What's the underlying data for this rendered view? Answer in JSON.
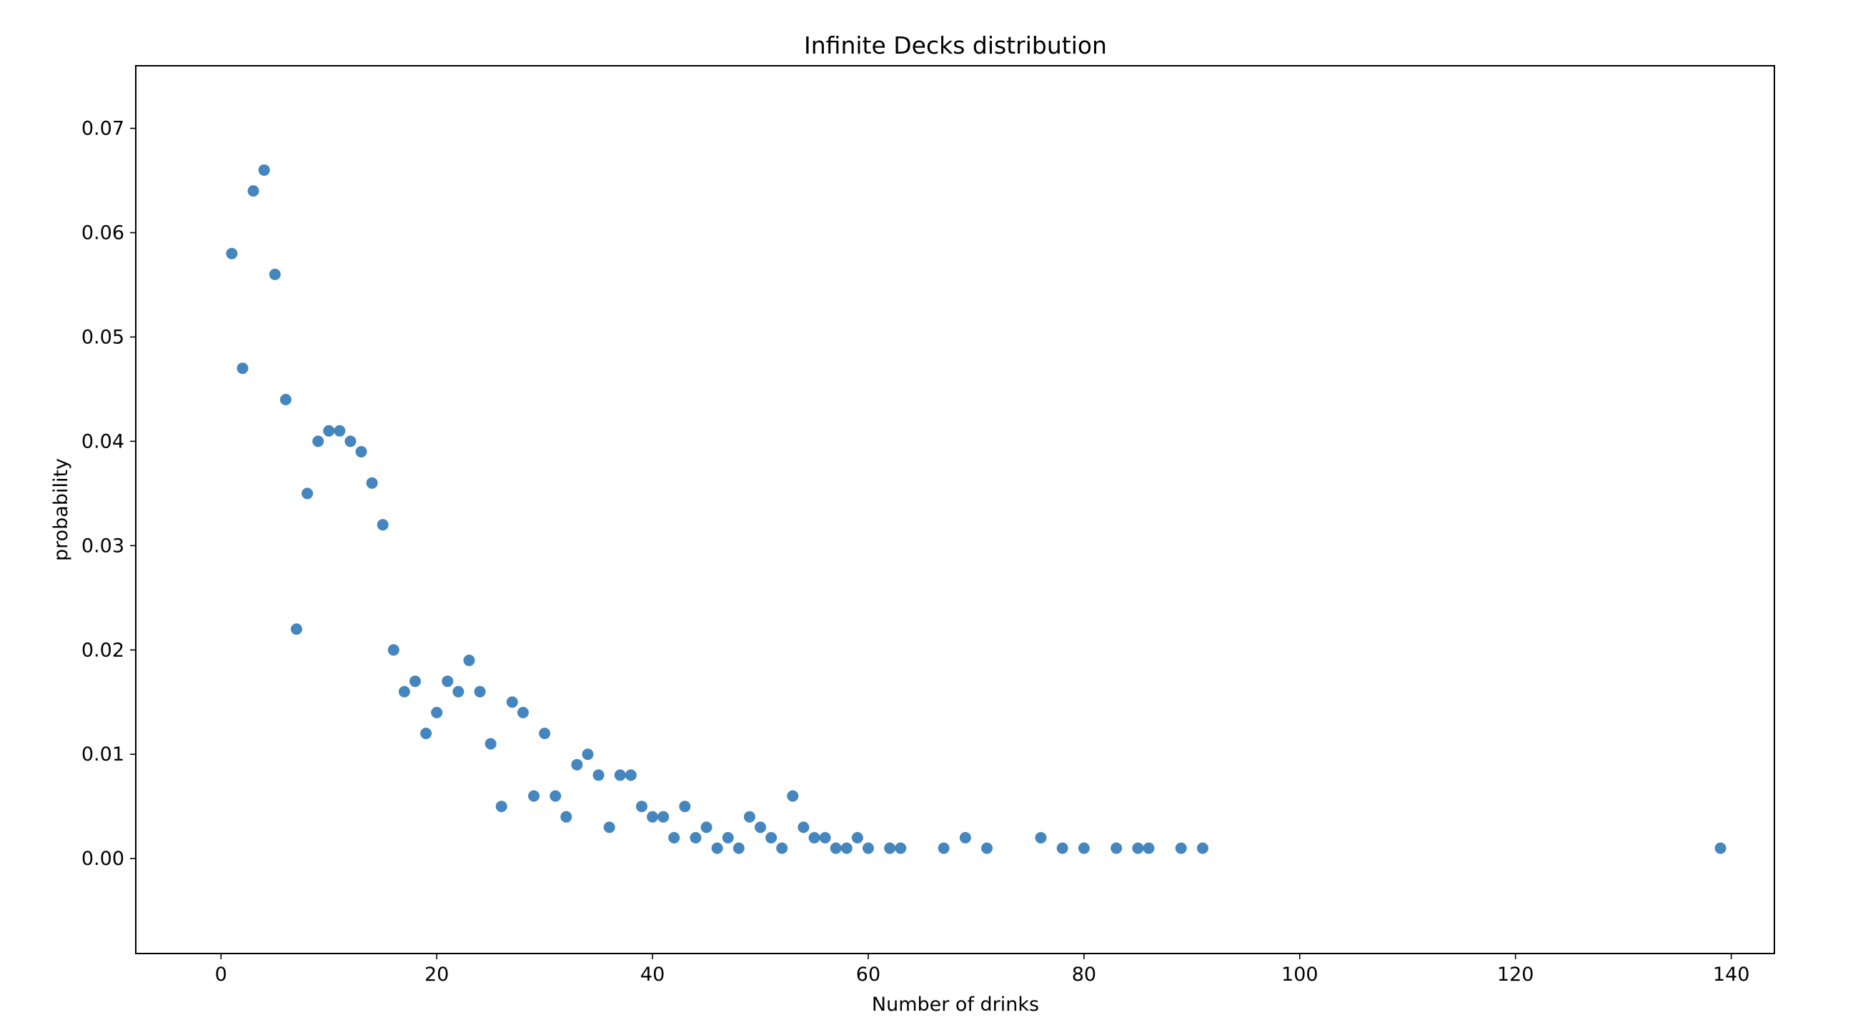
{
  "chart_data": {
    "type": "scatter",
    "title": "Infinite Decks distribution",
    "xlabel": "Number of drinks",
    "ylabel": "probability",
    "xlim": [
      -7.9,
      144.0
    ],
    "ylim": [
      -0.0091,
      0.076
    ],
    "xticks": [
      0,
      20,
      40,
      60,
      80,
      100,
      120,
      140
    ],
    "xtick_labels": [
      "0",
      "20",
      "40",
      "60",
      "80",
      "100",
      "120",
      "140"
    ],
    "yticks": [
      0.0,
      0.01,
      0.02,
      0.03,
      0.04,
      0.05,
      0.06,
      0.07
    ],
    "ytick_labels": [
      "0.00",
      "0.01",
      "0.02",
      "0.03",
      "0.04",
      "0.05",
      "0.06",
      "0.07"
    ],
    "grid": false,
    "marker_color": "#3a80b9",
    "series": [
      {
        "x": [
          1,
          2,
          3,
          4,
          5,
          6,
          7,
          8,
          9,
          10,
          11,
          12,
          13,
          14,
          15,
          16,
          17,
          18,
          19,
          20,
          21,
          22,
          23,
          24,
          25,
          26,
          27,
          28,
          29,
          30,
          31,
          32,
          33,
          34,
          35,
          36,
          37,
          38,
          39,
          40,
          41,
          42,
          43,
          44,
          45,
          46,
          47,
          48,
          49,
          50,
          51,
          52,
          53,
          54,
          55,
          56,
          57,
          58,
          59,
          60,
          62,
          63,
          67,
          69,
          71,
          76,
          78,
          80,
          83,
          85,
          86,
          89,
          91,
          139
        ],
        "y": [
          0.058,
          0.047,
          0.064,
          0.066,
          0.056,
          0.044,
          0.022,
          0.035,
          0.04,
          0.041,
          0.041,
          0.04,
          0.039,
          0.036,
          0.032,
          0.02,
          0.016,
          0.017,
          0.012,
          0.014,
          0.017,
          0.016,
          0.019,
          0.016,
          0.011,
          0.005,
          0.015,
          0.014,
          0.006,
          0.012,
          0.006,
          0.004,
          0.009,
          0.01,
          0.008,
          0.003,
          0.008,
          0.008,
          0.005,
          0.004,
          0.004,
          0.002,
          0.005,
          0.002,
          0.003,
          0.001,
          0.002,
          0.001,
          0.004,
          0.003,
          0.002,
          0.001,
          0.006,
          0.003,
          0.002,
          0.002,
          0.001,
          0.001,
          0.002,
          0.001,
          0.001,
          0.001,
          0.001,
          0.002,
          0.001,
          0.002,
          0.001,
          0.001,
          0.001,
          0.001,
          0.001,
          0.001,
          0.001,
          0.001
        ]
      }
    ]
  }
}
